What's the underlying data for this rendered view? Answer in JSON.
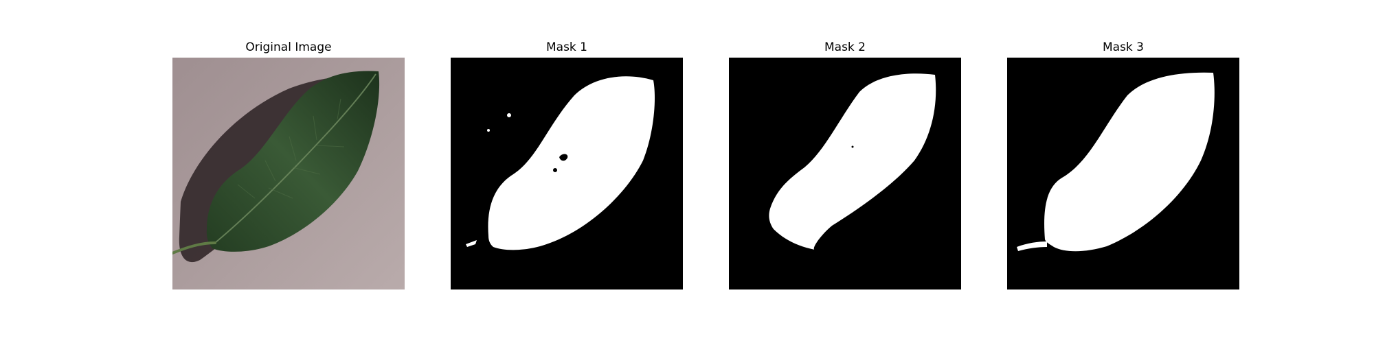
{
  "figure": {
    "panels": [
      {
        "title": "Original Image"
      },
      {
        "title": "Mask 1"
      },
      {
        "title": "Mask 2"
      },
      {
        "title": "Mask 3"
      }
    ]
  },
  "colors": {
    "background": "#ffffff",
    "mask_background": "#000000",
    "mask_foreground": "#ffffff",
    "surface": "#a8999a",
    "leaf": "#2e4a2b"
  }
}
